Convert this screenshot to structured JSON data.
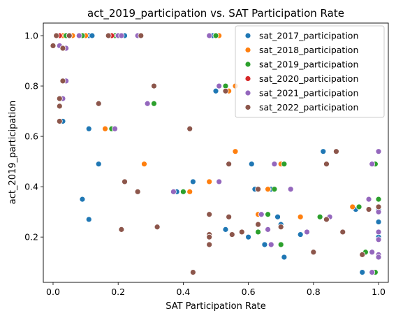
{
  "chart_data": {
    "type": "scatter",
    "title": "act_2019_participation vs. SAT Participation Rate",
    "xlabel": "SAT Participation Rate",
    "ylabel": "act_2019_participation",
    "xlim": [
      -0.03,
      1.03
    ],
    "ylim": [
      0.02,
      1.05
    ],
    "xticks": [
      "0.0",
      "0.2",
      "0.4",
      "0.6",
      "0.8",
      "1.0"
    ],
    "yticks": [
      "0.2",
      "0.4",
      "0.6",
      "0.8",
      "1.0"
    ],
    "xtick_values": [
      0,
      0.2,
      0.4,
      0.6,
      0.8,
      1.0
    ],
    "ytick_values": [
      0.2,
      0.4,
      0.6,
      0.8,
      1.0
    ],
    "grid": false,
    "legend_position": "top-right",
    "series": [
      {
        "name": "sat_2017_participation",
        "color": "#1f77b4",
        "points": [
          [
            0.02,
            1.0
          ],
          [
            0.03,
            1.0
          ],
          [
            0.05,
            1.0
          ],
          [
            0.06,
            1.0
          ],
          [
            0.09,
            1.0
          ],
          [
            0.11,
            1.0
          ],
          [
            0.12,
            1.0
          ],
          [
            0.22,
            1.0
          ],
          [
            0.49,
            1.0
          ],
          [
            0.03,
            0.66
          ],
          [
            0.11,
            0.63
          ],
          [
            0.14,
            0.49
          ],
          [
            0.09,
            0.35
          ],
          [
            0.11,
            0.27
          ],
          [
            0.5,
            0.78
          ],
          [
            0.38,
            0.38
          ],
          [
            0.43,
            0.42
          ],
          [
            0.53,
            0.23
          ],
          [
            0.6,
            0.2
          ],
          [
            0.62,
            0.39
          ],
          [
            0.61,
            0.49
          ],
          [
            0.65,
            0.17
          ],
          [
            0.69,
            0.28
          ],
          [
            0.7,
            0.25
          ],
          [
            0.71,
            0.12
          ],
          [
            0.67,
            0.39
          ],
          [
            0.76,
            0.21
          ],
          [
            0.83,
            0.54
          ],
          [
            0.93,
            0.31
          ],
          [
            0.95,
            0.06
          ],
          [
            0.96,
            0.14
          ],
          [
            1.0,
            0.35
          ],
          [
            1.0,
            0.31
          ],
          [
            1.0,
            0.26
          ],
          [
            1.0,
            0.2
          ]
        ]
      },
      {
        "name": "sat_2018_participation",
        "color": "#ff7f0e",
        "points": [
          [
            0.03,
            1.0
          ],
          [
            0.06,
            1.0
          ],
          [
            0.1,
            1.0
          ],
          [
            0.2,
            1.0
          ],
          [
            0.51,
            1.0
          ],
          [
            0.16,
            0.63
          ],
          [
            0.28,
            0.49
          ],
          [
            0.42,
            0.38
          ],
          [
            0.48,
            0.42
          ],
          [
            0.54,
            0.78
          ],
          [
            0.56,
            0.8
          ],
          [
            0.56,
            0.54
          ],
          [
            0.63,
            0.29
          ],
          [
            0.66,
            0.39
          ],
          [
            0.7,
            0.49
          ],
          [
            0.76,
            0.28
          ],
          [
            0.92,
            0.32
          ],
          [
            0.96,
            0.14
          ],
          [
            0.97,
            0.35
          ]
        ]
      },
      {
        "name": "sat_2019_participation",
        "color": "#2ca02c",
        "points": [
          [
            0.02,
            1.0
          ],
          [
            0.04,
            1.0
          ],
          [
            0.09,
            1.0
          ],
          [
            0.19,
            1.0
          ],
          [
            0.5,
            1.0
          ],
          [
            0.18,
            0.63
          ],
          [
            0.31,
            0.73
          ],
          [
            0.4,
            0.38
          ],
          [
            0.53,
            0.8
          ],
          [
            0.63,
            0.22
          ],
          [
            0.66,
            0.29
          ],
          [
            0.68,
            0.39
          ],
          [
            0.7,
            0.17
          ],
          [
            0.71,
            0.49
          ],
          [
            0.82,
            0.28
          ],
          [
            0.94,
            0.32
          ],
          [
            0.96,
            0.14
          ],
          [
            0.99,
            0.06
          ],
          [
            0.99,
            0.49
          ],
          [
            1.0,
            0.35
          ]
        ]
      },
      {
        "name": "sat_2020_participation",
        "color": "#d62728",
        "points": [
          [
            0.02,
            1.0
          ],
          [
            0.05,
            1.0
          ],
          [
            0.18,
            1.0
          ],
          [
            0.95,
            0.13
          ]
        ]
      },
      {
        "name": "sat_2021_participation",
        "color": "#9467bd",
        "points": [
          [
            0.01,
            1.0
          ],
          [
            0.02,
            0.96
          ],
          [
            0.03,
            0.75
          ],
          [
            0.04,
            0.82
          ],
          [
            0.04,
            0.95
          ],
          [
            0.05,
            1.0
          ],
          [
            0.08,
            1.0
          ],
          [
            0.2,
            1.0
          ],
          [
            0.21,
            1.0
          ],
          [
            0.26,
            1.0
          ],
          [
            0.48,
            1.0
          ],
          [
            0.19,
            0.63
          ],
          [
            0.29,
            0.73
          ],
          [
            0.37,
            0.38
          ],
          [
            0.51,
            0.42
          ],
          [
            0.51,
            0.8
          ],
          [
            0.63,
            0.25
          ],
          [
            0.64,
            0.29
          ],
          [
            0.66,
            0.23
          ],
          [
            0.67,
            0.17
          ],
          [
            0.68,
            0.49
          ],
          [
            0.73,
            0.39
          ],
          [
            0.78,
            0.22
          ],
          [
            0.85,
            0.28
          ],
          [
            0.98,
            0.49
          ],
          [
            0.97,
            0.35
          ],
          [
            0.98,
            0.14
          ],
          [
            0.98,
            0.06
          ],
          [
            1.0,
            0.54
          ],
          [
            1.0,
            0.3
          ],
          [
            1.0,
            0.22
          ],
          [
            1.0,
            0.19
          ],
          [
            1.0,
            0.13
          ],
          [
            1.0,
            0.12
          ]
        ]
      },
      {
        "name": "sat_2022_participation",
        "color": "#8c564b",
        "points": [
          [
            0.0,
            0.96
          ],
          [
            0.01,
            1.0
          ],
          [
            0.02,
            0.75
          ],
          [
            0.02,
            0.72
          ],
          [
            0.02,
            0.66
          ],
          [
            0.03,
            0.82
          ],
          [
            0.03,
            0.95
          ],
          [
            0.05,
            1.0
          ],
          [
            0.17,
            1.0
          ],
          [
            0.27,
            1.0
          ],
          [
            0.14,
            0.73
          ],
          [
            0.31,
            0.8
          ],
          [
            0.22,
            0.42
          ],
          [
            0.26,
            0.38
          ],
          [
            0.21,
            0.23
          ],
          [
            0.32,
            0.24
          ],
          [
            0.42,
            0.63
          ],
          [
            0.43,
            0.06
          ],
          [
            0.48,
            0.29
          ],
          [
            0.48,
            0.21
          ],
          [
            0.48,
            0.2
          ],
          [
            0.48,
            0.17
          ],
          [
            0.53,
            0.78
          ],
          [
            0.54,
            0.49
          ],
          [
            0.54,
            0.28
          ],
          [
            0.55,
            0.21
          ],
          [
            0.58,
            0.22
          ],
          [
            0.63,
            0.39
          ],
          [
            0.63,
            0.25
          ],
          [
            0.7,
            0.24
          ],
          [
            0.8,
            0.14
          ],
          [
            0.84,
            0.49
          ],
          [
            0.84,
            0.27
          ],
          [
            0.87,
            0.54
          ],
          [
            0.89,
            0.22
          ],
          [
            0.95,
            0.13
          ],
          [
            0.97,
            0.31
          ],
          [
            1.0,
            0.32
          ]
        ]
      }
    ]
  }
}
